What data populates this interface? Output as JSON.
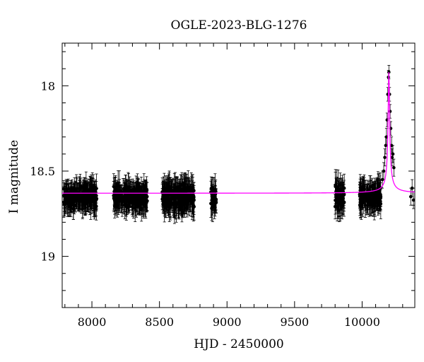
{
  "chart_data": {
    "type": "scatter",
    "title": "OGLE-2023-BLG-1276",
    "xlabel": "HJD - 2450000",
    "ylabel": "I magnitude",
    "xlim": [
      7780,
      10390
    ],
    "ylim": [
      19.3,
      17.75
    ],
    "y_inverted": true,
    "x_ticks": [
      8000,
      8500,
      9000,
      9500,
      10000
    ],
    "y_ticks": [
      18,
      18.5,
      19
    ],
    "x_tick_labels": [
      "8000",
      "8500",
      "9000",
      "9500",
      "10000"
    ],
    "y_tick_labels": [
      "18",
      "18.5",
      "19"
    ],
    "grid": false,
    "legend": "none",
    "series": [
      {
        "kind": "points-with-errorbars",
        "color": "#000000",
        "seasons": [
          {
            "x_start": 7790,
            "x_end": 8040,
            "mag_mean": 18.65,
            "mag_scatter": 0.04,
            "err": 0.06
          },
          {
            "x_start": 8160,
            "x_end": 8410,
            "mag_mean": 18.65,
            "mag_scatter": 0.04,
            "err": 0.06
          },
          {
            "x_start": 8520,
            "x_end": 8760,
            "mag_mean": 18.65,
            "mag_scatter": 0.045,
            "err": 0.065
          },
          {
            "x_start": 8880,
            "x_end": 8920,
            "mag_mean": 18.66,
            "mag_scatter": 0.04,
            "err": 0.06
          },
          {
            "x_start": 9800,
            "x_end": 9870,
            "mag_mean": 18.65,
            "mag_scatter": 0.05,
            "err": 0.07
          },
          {
            "x_start": 9980,
            "x_end": 10140,
            "mag_mean": 18.65,
            "mag_scatter": 0.04,
            "err": 0.06
          }
        ],
        "event_points": [
          {
            "x": 10150,
            "y": 18.55,
            "err": 0.05
          },
          {
            "x": 10160,
            "y": 18.5,
            "err": 0.05
          },
          {
            "x": 10168,
            "y": 18.42,
            "err": 0.05
          },
          {
            "x": 10175,
            "y": 18.35,
            "err": 0.05
          },
          {
            "x": 10180,
            "y": 18.3,
            "err": 0.05
          },
          {
            "x": 10185,
            "y": 18.2,
            "err": 0.04
          },
          {
            "x": 10190,
            "y": 18.05,
            "err": 0.04
          },
          {
            "x": 10195,
            "y": 17.95,
            "err": 0.04
          },
          {
            "x": 10198,
            "y": 17.92,
            "err": 0.04
          },
          {
            "x": 10203,
            "y": 18.05,
            "err": 0.04
          },
          {
            "x": 10207,
            "y": 18.15,
            "err": 0.04
          },
          {
            "x": 10212,
            "y": 18.25,
            "err": 0.04
          },
          {
            "x": 10218,
            "y": 18.35,
            "err": 0.05
          },
          {
            "x": 10222,
            "y": 18.42,
            "err": 0.05
          },
          {
            "x": 10228,
            "y": 18.4,
            "err": 0.05
          },
          {
            "x": 10235,
            "y": 18.48,
            "err": 0.05
          },
          {
            "x": 10360,
            "y": 18.65,
            "err": 0.05
          },
          {
            "x": 10370,
            "y": 18.6,
            "err": 0.05
          },
          {
            "x": 10380,
            "y": 18.67,
            "err": 0.05
          }
        ]
      },
      {
        "kind": "model",
        "color": "#ff00ff",
        "baseline_mag": 18.63,
        "peak_mag": 17.92,
        "t0": 10198,
        "width_days": 28
      }
    ]
  }
}
